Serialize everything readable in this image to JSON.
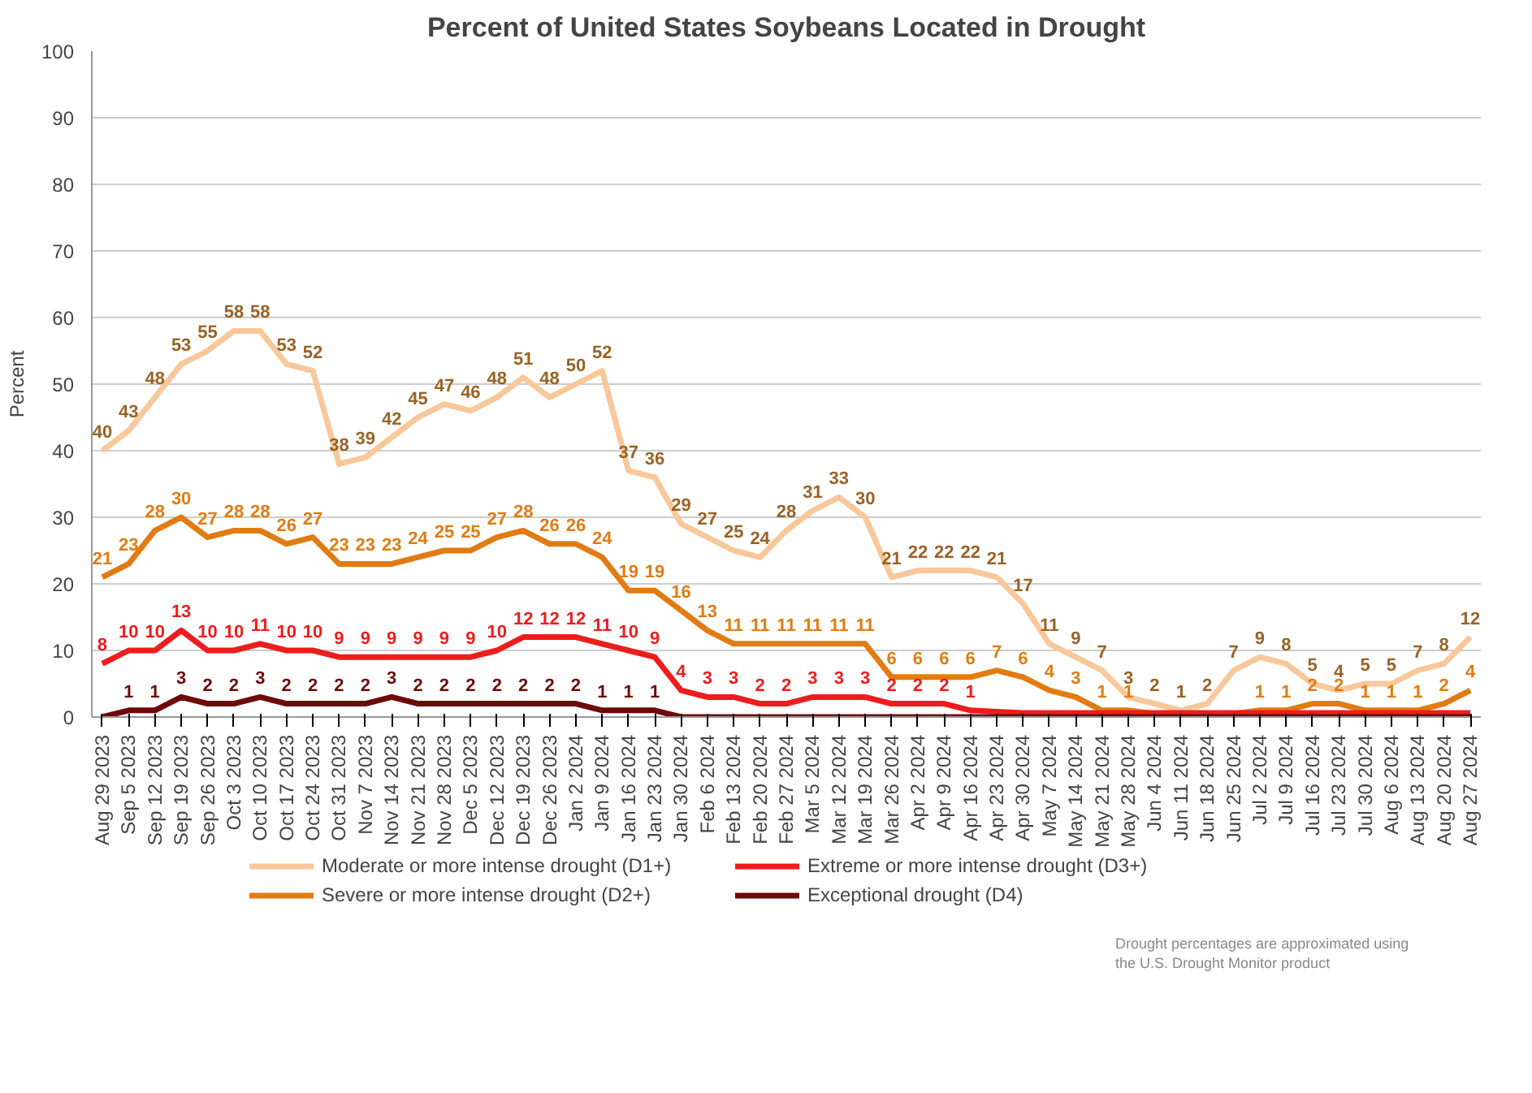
{
  "chart_data": {
    "type": "line",
    "title": "Percent of United States Soybeans Located in Drought",
    "ylabel": "Percent",
    "categories": [
      "Aug 29 2023",
      "Sep 5 2023",
      "Sep 12 2023",
      "Sep 19 2023",
      "Sep 26 2023",
      "Oct 3 2023",
      "Oct 10 2023",
      "Oct 17 2023",
      "Oct 24 2023",
      "Oct 31 2023",
      "Nov 7 2023",
      "Nov 14 2023",
      "Nov 21 2023",
      "Nov 28 2023",
      "Dec 5 2023",
      "Dec 12 2023",
      "Dec 19 2023",
      "Dec 26 2023",
      "Jan 2 2024",
      "Jan 9 2024",
      "Jan 16 2024",
      "Jan 23 2024",
      "Jan 30 2024",
      "Feb 6 2024",
      "Feb 13 2024",
      "Feb 20 2024",
      "Feb 27 2024",
      "Mar 5 2024",
      "Mar 12 2024",
      "Mar 19 2024",
      "Mar 26 2024",
      "Apr 2 2024",
      "Apr 9 2024",
      "Apr 16 2024",
      "Apr 23 2024",
      "Apr 30 2024",
      "May 7 2024",
      "May 14 2024",
      "May 21 2024",
      "May 28 2024",
      "Jun 4 2024",
      "Jun 11 2024",
      "Jun 18 2024",
      "Jun 25 2024",
      "Jul 2 2024",
      "Jul 9 2024",
      "Jul 16 2024",
      "Jul 23 2024",
      "Jul 30 2024",
      "Aug 6 2024",
      "Aug 13 2024",
      "Aug 20 2024",
      "Aug 27 2024"
    ],
    "series": [
      {
        "name": "Moderate or more intense drought (D1+)",
        "color": "#f8c79a",
        "values": [
          40,
          43,
          48,
          53,
          55,
          58,
          58,
          53,
          52,
          38,
          39,
          42,
          45,
          47,
          46,
          48,
          51,
          48,
          50,
          52,
          37,
          36,
          29,
          27,
          25,
          24,
          28,
          31,
          33,
          30,
          21,
          22,
          22,
          22,
          21,
          17,
          11,
          9,
          7,
          3,
          2,
          1,
          2,
          7,
          9,
          8,
          5,
          4,
          5,
          5,
          7,
          8,
          12
        ],
        "value_labels": [
          "40",
          "43",
          "48",
          "53",
          "55",
          "58",
          "58",
          "53",
          "52",
          "38",
          "39",
          "42",
          "45",
          "47",
          "46",
          "48",
          "51",
          "48",
          "50",
          "52",
          "37",
          "36",
          "29",
          "27",
          "25",
          "24",
          "28",
          "31",
          "33",
          "30",
          "21",
          "22",
          "22",
          "22",
          "21",
          "17",
          "11",
          "9",
          "7",
          "3",
          "2",
          "1",
          "2",
          "7",
          "9",
          "8",
          "5",
          "4",
          "5",
          "5",
          "7",
          "8",
          "12"
        ]
      },
      {
        "name": "Severe or more intense drought (D2+)",
        "color": "#e27b12",
        "values": [
          21,
          23,
          28,
          30,
          27,
          28,
          28,
          26,
          27,
          23,
          23,
          23,
          24,
          25,
          25,
          27,
          28,
          26,
          26,
          24,
          19,
          19,
          16,
          13,
          11,
          11,
          11,
          11,
          11,
          11,
          6,
          6,
          6,
          6,
          7,
          6,
          4,
          3,
          1,
          1,
          0.5,
          0.3,
          0.3,
          0.5,
          1,
          1,
          2,
          2,
          1,
          1,
          1,
          2,
          4
        ],
        "value_labels": [
          "21",
          "23",
          "28",
          "30",
          "27",
          "28",
          "28",
          "26",
          "27",
          "23",
          "23",
          "23",
          "24",
          "25",
          "25",
          "27",
          "28",
          "26",
          "26",
          "24",
          "19",
          "19",
          "16",
          "13",
          "11",
          "11",
          "11",
          "11",
          "11",
          "11",
          "6",
          "6",
          "6",
          "6",
          "7",
          "6",
          "4",
          "3",
          "1",
          "1",
          null,
          null,
          null,
          null,
          "1",
          "1",
          "2",
          "2",
          "1",
          "1",
          "1",
          "2",
          "4"
        ]
      },
      {
        "name": "Extreme or more intense drought (D3+)",
        "color": "#ee1c1c",
        "values": [
          8,
          10,
          10,
          13,
          10,
          10,
          11,
          10,
          10,
          9,
          9,
          9,
          9,
          9,
          9,
          10,
          12,
          12,
          12,
          11,
          10,
          9,
          4,
          3,
          3,
          2,
          2,
          3,
          3,
          3,
          2,
          2,
          2,
          1,
          0.8,
          0.6,
          0.6,
          0.6,
          0.6,
          0.6,
          0.6,
          0.6,
          0.6,
          0.6,
          0.6,
          0.6,
          0.6,
          0.6,
          0.6,
          0.6,
          0.6,
          0.6,
          0.6
        ],
        "value_labels": [
          "8",
          "10",
          "10",
          "13",
          "10",
          "10",
          "11",
          "10",
          "10",
          "9",
          "9",
          "9",
          "9",
          "9",
          "9",
          "10",
          "12",
          "12",
          "12",
          "11",
          "10",
          "9",
          "4",
          "3",
          "3",
          "2",
          "2",
          "3",
          "3",
          "3",
          "2",
          "2",
          "2",
          "1",
          null,
          null,
          null,
          null,
          null,
          null,
          null,
          null,
          null,
          null,
          null,
          null,
          null,
          null,
          null,
          null,
          null,
          null,
          null
        ]
      },
      {
        "name": "Exceptional drought (D4)",
        "color": "#6e0a0a",
        "values": [
          0,
          1,
          1,
          3,
          2,
          2,
          3,
          2,
          2,
          2,
          2,
          3,
          2,
          2,
          2,
          2,
          2,
          2,
          2,
          1,
          1,
          1,
          0,
          0,
          0,
          0,
          0,
          0,
          0,
          0,
          0,
          0,
          0,
          0,
          0,
          0,
          0,
          0,
          0,
          0,
          0,
          0,
          0,
          0,
          0,
          0,
          0,
          0,
          0,
          0,
          0,
          0,
          0
        ],
        "value_labels": [
          null,
          "1",
          "1",
          "3",
          "2",
          "2",
          "3",
          "2",
          "2",
          "2",
          "2",
          "3",
          "2",
          "2",
          "2",
          "2",
          "2",
          "2",
          "2",
          "1",
          "1",
          "1",
          null,
          null,
          null,
          null,
          null,
          null,
          null,
          null,
          null,
          null,
          null,
          null,
          null,
          null,
          null,
          null,
          null,
          null,
          null,
          null,
          null,
          null,
          null,
          null,
          null,
          null,
          null,
          null,
          null,
          null,
          null
        ]
      }
    ],
    "ylim": [
      0,
      100
    ],
    "yticks": [
      0,
      10,
      20,
      30,
      40,
      50,
      60,
      70,
      80,
      90,
      100
    ],
    "grid": "y",
    "legend": "bottom",
    "marker": "none",
    "line_style": "solid",
    "annotations": [
      "Drought percentages are approximated using the U.S. Drought Monitor product"
    ]
  }
}
